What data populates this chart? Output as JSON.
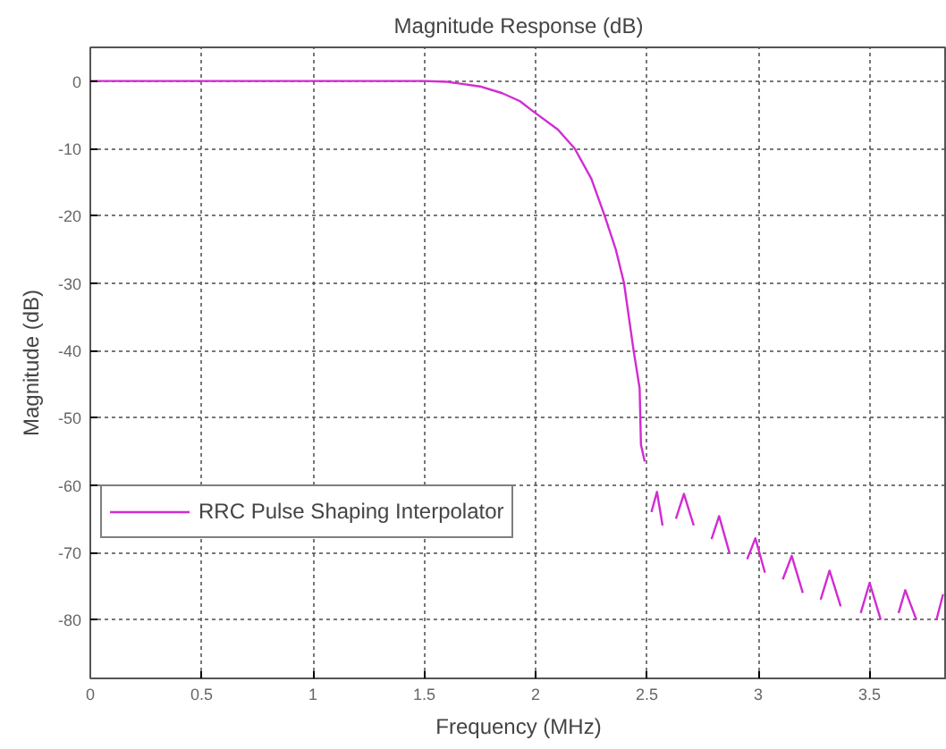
{
  "chart_data": {
    "type": "line",
    "title": "Magnitude Response (dB)",
    "xlabel": "Frequency (MHz)",
    "ylabel": "Magnitude (dB)",
    "x": [
      0,
      0.5,
      1,
      1.5,
      1.6,
      1.75,
      1.85,
      1.93,
      1.985,
      2.1,
      2.175,
      2.25,
      2.31,
      2.36,
      2.397,
      2.44,
      2.467,
      2.473,
      2.49,
      2.5,
      2.52,
      2.545,
      2.57,
      2.6,
      2.63,
      2.666,
      2.71,
      2.75,
      2.79,
      2.824,
      2.87,
      2.91,
      2.95,
      2.987,
      3.03,
      3.07,
      3.11,
      3.15,
      3.2,
      3.24,
      3.28,
      3.32,
      3.37,
      3.41,
      3.46,
      3.5,
      3.55,
      3.59,
      3.63,
      3.66,
      3.71,
      3.76,
      3.8,
      3.83
    ],
    "series": [
      {
        "name": "RRC Pulse Shaping Interpolator",
        "color": "#d22bd2",
        "values": [
          0,
          0,
          0,
          0,
          -0.1,
          -0.8,
          -1.8,
          -3,
          -4.4,
          -7.2,
          -10,
          -14.5,
          -20,
          -25,
          -30,
          -40,
          -45.6,
          -54,
          -56.5,
          null,
          -64,
          -61,
          -66,
          null,
          -65,
          -61.3,
          -66,
          null,
          -68,
          -64.6,
          -70,
          null,
          -71,
          -67.9,
          -73,
          null,
          -74,
          -70.5,
          -76,
          null,
          -77,
          -72.7,
          -78,
          null,
          -79,
          -74.5,
          -80,
          null,
          -79,
          -75.6,
          -80,
          null,
          -80,
          -76.2
        ]
      }
    ],
    "xlim": [
      0,
      3.847
    ],
    "ylim": [
      -88.7,
      5
    ],
    "xticks": [
      0,
      0.5,
      1,
      1.5,
      2,
      2.5,
      3,
      3.5
    ],
    "yticks": [
      0,
      -10,
      -20,
      -30,
      -40,
      -50,
      -60,
      -70,
      -80
    ],
    "grid": true,
    "legend": "left",
    "line_style": "solid"
  }
}
